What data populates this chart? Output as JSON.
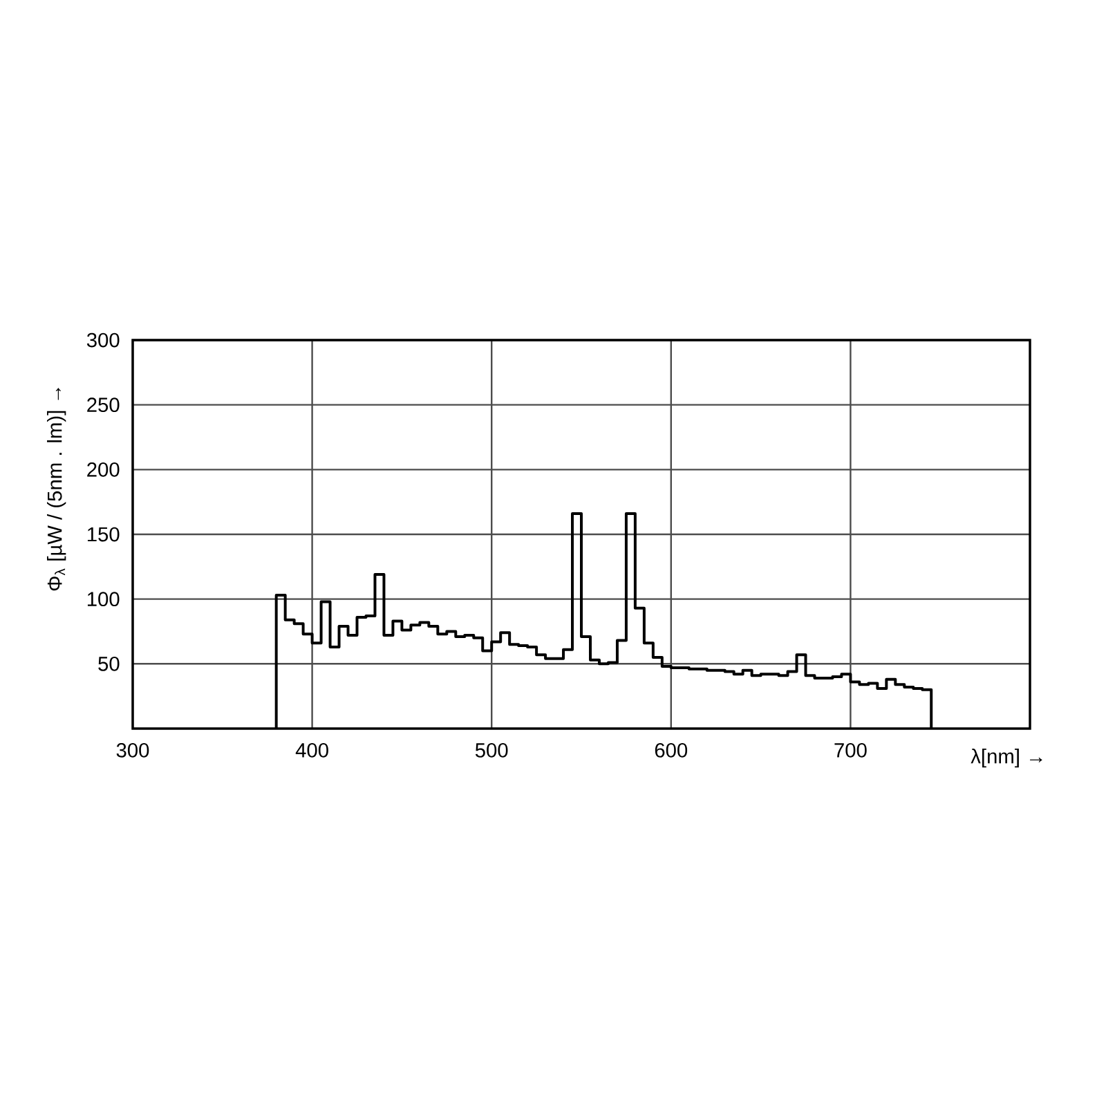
{
  "chart_data": {
    "type": "histogram",
    "xlabel": "λ[nm] →",
    "ylabel": "Φ$_{λ}$ [µW / (5nm . lm)] →",
    "bins": [
      380,
      385,
      390,
      395,
      400,
      405,
      410,
      415,
      420,
      425,
      430,
      435,
      440,
      445,
      450,
      455,
      460,
      465,
      470,
      475,
      480,
      485,
      490,
      495,
      500,
      505,
      510,
      515,
      520,
      525,
      530,
      535,
      540,
      545,
      550,
      555,
      560,
      565,
      570,
      575,
      580,
      585,
      590,
      595,
      600,
      605,
      610,
      615,
      620,
      625,
      630,
      635,
      640,
      645,
      650,
      655,
      660,
      665,
      670,
      675,
      680,
      685,
      690,
      695,
      700,
      705,
      710,
      715,
      720,
      725,
      730,
      735,
      740,
      745
    ],
    "values": [
      103,
      84,
      81,
      73,
      66,
      98,
      63,
      79,
      72,
      86,
      87,
      119,
      72,
      83,
      76,
      80,
      82,
      79,
      73,
      75,
      71,
      72,
      70,
      60,
      67,
      74,
      65,
      64,
      63,
      57,
      54,
      54,
      61,
      166,
      71,
      53,
      50,
      51,
      68,
      166,
      93,
      66,
      55,
      48,
      47,
      47,
      46,
      46,
      45,
      45,
      44,
      42,
      45,
      41,
      42,
      42,
      41,
      44,
      57,
      41,
      39,
      39,
      40,
      42,
      36,
      34,
      35,
      31,
      38,
      34,
      32,
      31,
      30
    ],
    "color": "#000000",
    "xlim": [
      300,
      800
    ],
    "xticks": [
      300,
      400,
      500,
      600,
      700
    ],
    "ylim": [
      0,
      300
    ],
    "yticks": [
      50,
      100,
      150,
      200,
      250,
      300
    ],
    "grid": true
  }
}
